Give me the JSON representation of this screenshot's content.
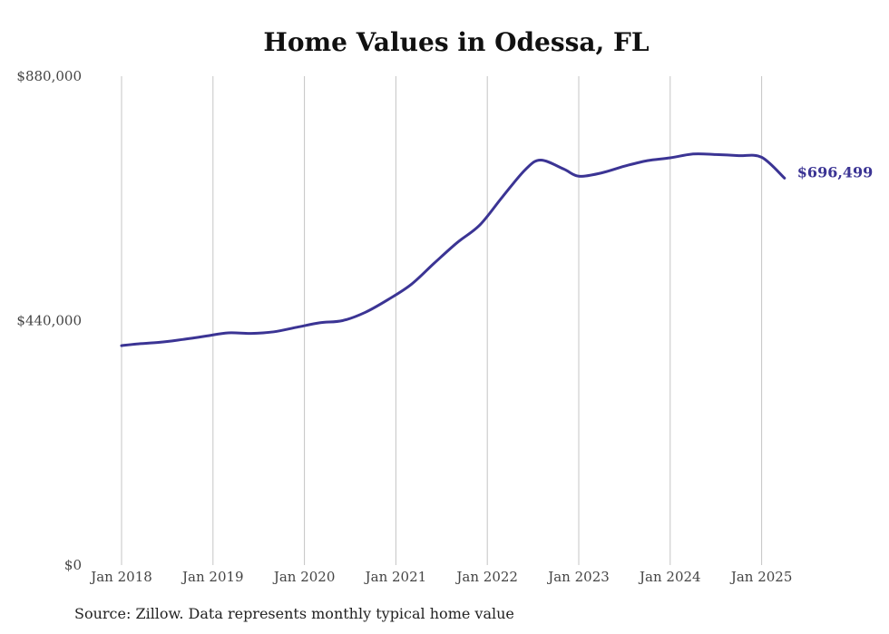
{
  "chart_data": {
    "type": "line",
    "title": "Home Values in Odessa, FL",
    "xlabel": "",
    "ylabel": "",
    "ylim": [
      0,
      880000
    ],
    "y_ticks": [
      0,
      440000,
      880000
    ],
    "y_tick_labels": [
      "$0",
      "$440,000",
      "$880,000"
    ],
    "x_ticks": [
      "2018-01",
      "2019-01",
      "2020-01",
      "2021-01",
      "2022-01",
      "2023-01",
      "2024-01",
      "2025-01"
    ],
    "x_tick_labels": [
      "Jan 2018",
      "Jan 2019",
      "Jan 2020",
      "Jan 2021",
      "Jan 2022",
      "Jan 2023",
      "Jan 2024",
      "Jan 2025"
    ],
    "grid": "vertical",
    "line_color": "#3b3494",
    "end_label": "$696,499",
    "series": [
      {
        "x": [
          "2018-01",
          "2018-03",
          "2018-06",
          "2018-09",
          "2018-12",
          "2019-03",
          "2019-06",
          "2019-09",
          "2019-12",
          "2020-03",
          "2020-06",
          "2020-09",
          "2020-12",
          "2021-03",
          "2021-06",
          "2021-09",
          "2021-12",
          "2022-03",
          "2022-06",
          "2022-08",
          "2022-11",
          "2023-01",
          "2023-04",
          "2023-07",
          "2023-10",
          "2024-01",
          "2024-04",
          "2024-07",
          "2024-10",
          "2025-01",
          "2025-04"
        ],
        "y": [
          395000,
          398000,
          401000,
          406000,
          412000,
          418000,
          417000,
          420000,
          428000,
          436000,
          440000,
          455000,
          478000,
          505000,
          543000,
          580000,
          612000,
          663000,
          712000,
          729000,
          713000,
          700000,
          706000,
          718000,
          728000,
          733000,
          740000,
          739000,
          737000,
          734000,
          696499
        ]
      }
    ]
  },
  "source_note": "Source: Zillow. Data represents monthly typical home value"
}
